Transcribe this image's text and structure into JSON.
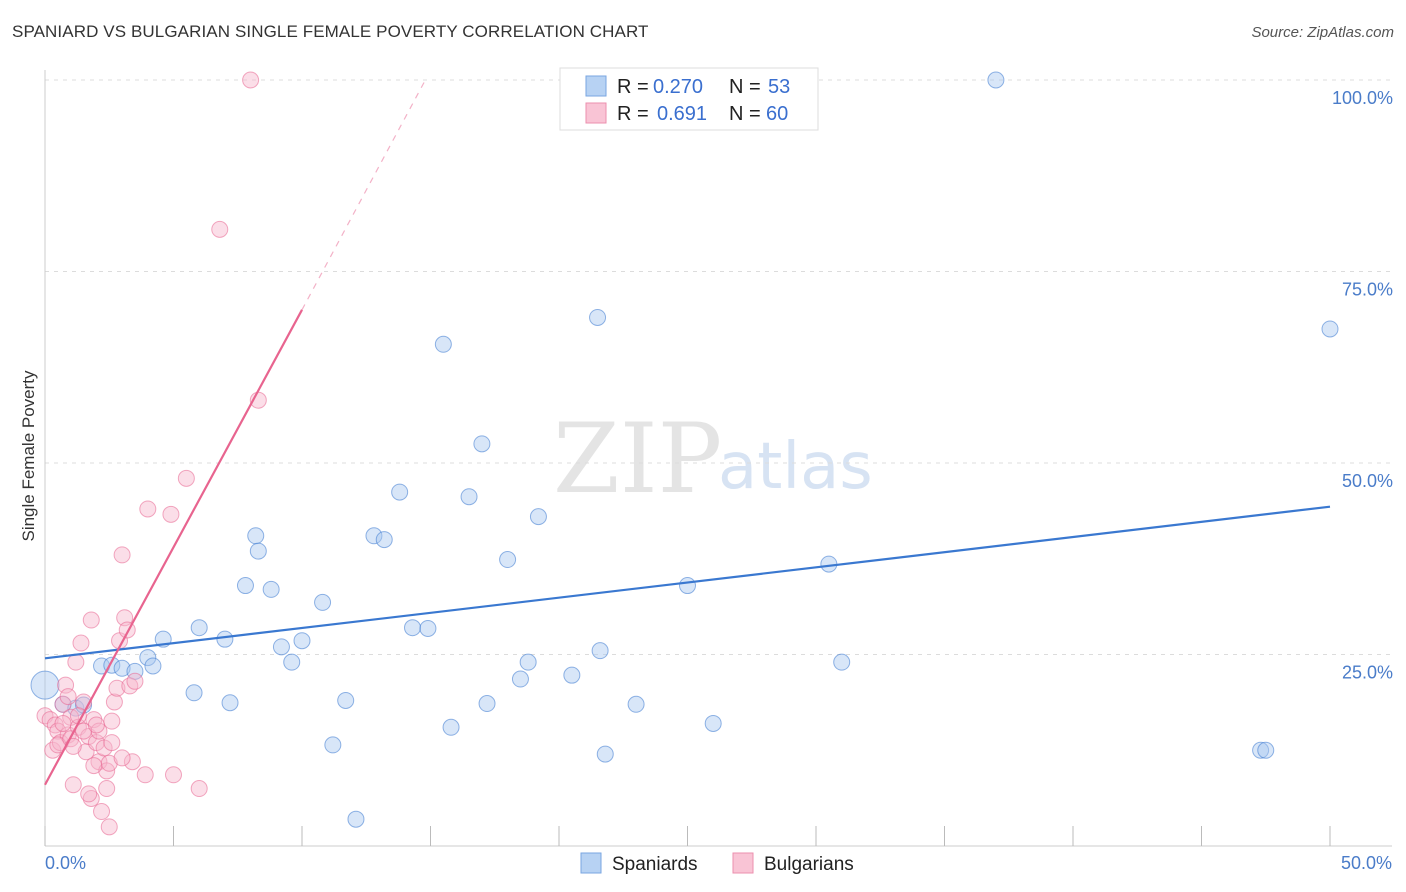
{
  "header": {
    "title": "SPANIARD VS BULGARIAN SINGLE FEMALE POVERTY CORRELATION CHART",
    "source": "Source: ZipAtlas.com"
  },
  "watermark": {
    "zip": "ZIP",
    "atlas": "atlas"
  },
  "legend": {
    "r_label": "R =",
    "n_label": "N =",
    "rows": [
      {
        "name": "Spaniards",
        "r": "0.270",
        "n": "53",
        "color": "#a9c8f0"
      },
      {
        "name": "Bulgarians",
        "r": "0.691",
        "n": "60",
        "color": "#f7b6cb"
      }
    ]
  },
  "chart_data": {
    "type": "scatter",
    "title": "SPANIARD VS BULGARIAN SINGLE FEMALE POVERTY CORRELATION CHART",
    "xlabel": "",
    "ylabel": "Single Female Poverty",
    "xlim": [
      0,
      50
    ],
    "ylim": [
      0,
      100
    ],
    "x_tick_labels": [
      "0.0%",
      "50.0%"
    ],
    "y_tick_labels": [
      "100.0%",
      "75.0%",
      "50.0%",
      "25.0%"
    ],
    "y_tick_values": [
      100,
      75,
      50,
      25
    ],
    "series": [
      {
        "name": "Spaniards",
        "color": "#3a78d0",
        "fill": "#a9c8f0",
        "trend": {
          "x0": 0,
          "y0": 24.5,
          "x1": 50,
          "y1": 44.3
        },
        "points": [
          [
            0.0,
            21.0
          ],
          [
            0.7,
            18.5
          ],
          [
            1.2,
            18.0
          ],
          [
            1.5,
            18.4
          ],
          [
            2.2,
            23.5
          ],
          [
            2.6,
            23.6
          ],
          [
            3.0,
            23.2
          ],
          [
            3.5,
            22.8
          ],
          [
            4.0,
            24.6
          ],
          [
            4.6,
            27.0
          ],
          [
            6.0,
            28.5
          ],
          [
            7.0,
            27.0
          ],
          [
            7.2,
            18.7
          ],
          [
            5.8,
            20.0
          ],
          [
            7.8,
            34.0
          ],
          [
            8.2,
            40.5
          ],
          [
            8.3,
            38.5
          ],
          [
            8.8,
            33.5
          ],
          [
            9.2,
            26.0
          ],
          [
            9.6,
            24.0
          ],
          [
            10.0,
            26.8
          ],
          [
            10.8,
            31.8
          ],
          [
            11.2,
            13.2
          ],
          [
            11.7,
            19.0
          ],
          [
            12.1,
            3.5
          ],
          [
            12.8,
            40.5
          ],
          [
            13.2,
            40.0
          ],
          [
            13.8,
            46.2
          ],
          [
            14.3,
            28.5
          ],
          [
            14.9,
            28.4
          ],
          [
            15.5,
            65.5
          ],
          [
            15.8,
            15.5
          ],
          [
            16.5,
            45.6
          ],
          [
            17.0,
            52.5
          ],
          [
            17.2,
            18.6
          ],
          [
            18.0,
            37.4
          ],
          [
            18.5,
            21.8
          ],
          [
            18.8,
            24.0
          ],
          [
            19.2,
            43.0
          ],
          [
            20.5,
            22.3
          ],
          [
            21.5,
            69.0
          ],
          [
            21.6,
            25.5
          ],
          [
            21.8,
            12.0
          ],
          [
            23.0,
            18.5
          ],
          [
            25.0,
            34.0
          ],
          [
            26.0,
            16.0
          ],
          [
            30.5,
            36.8
          ],
          [
            31.0,
            24.0
          ],
          [
            37.0,
            100.0
          ],
          [
            47.3,
            12.5
          ],
          [
            47.5,
            12.5
          ],
          [
            50.0,
            67.5
          ],
          [
            4.2,
            23.5
          ]
        ]
      },
      {
        "name": "Bulgarians",
        "color": "#e8648f",
        "fill": "#f7b6cb",
        "trend": {
          "x0": 0,
          "y0": 8.0,
          "x1": 10,
          "y1": 70.0,
          "dash_x1": 14.8,
          "dash_y1": 100.0
        },
        "points": [
          [
            0.0,
            17.0
          ],
          [
            0.2,
            16.5
          ],
          [
            0.3,
            12.5
          ],
          [
            0.4,
            15.8
          ],
          [
            0.5,
            15.0
          ],
          [
            0.6,
            13.5
          ],
          [
            0.7,
            18.5
          ],
          [
            0.8,
            21.0
          ],
          [
            0.9,
            14.5
          ],
          [
            1.0,
            16.8
          ],
          [
            1.1,
            8.0
          ],
          [
            1.2,
            24.0
          ],
          [
            1.3,
            15.5
          ],
          [
            1.4,
            26.5
          ],
          [
            1.5,
            18.8
          ],
          [
            1.6,
            12.3
          ],
          [
            1.7,
            14.3
          ],
          [
            1.8,
            6.2
          ],
          [
            1.7,
            6.8
          ],
          [
            1.8,
            29.5
          ],
          [
            1.9,
            16.5
          ],
          [
            2.0,
            13.5
          ],
          [
            2.1,
            11.0
          ],
          [
            2.2,
            4.5
          ],
          [
            2.1,
            15.0
          ],
          [
            2.3,
            12.8
          ],
          [
            2.4,
            9.8
          ],
          [
            2.5,
            2.5
          ],
          [
            2.4,
            7.5
          ],
          [
            2.5,
            10.8
          ],
          [
            2.6,
            13.5
          ],
          [
            2.7,
            18.8
          ],
          [
            2.8,
            20.6
          ],
          [
            2.9,
            26.8
          ],
          [
            3.0,
            38.0
          ],
          [
            3.1,
            29.8
          ],
          [
            3.2,
            28.2
          ],
          [
            3.3,
            20.9
          ],
          [
            3.4,
            11.0
          ],
          [
            3.5,
            21.5
          ],
          [
            3.9,
            9.3
          ],
          [
            4.0,
            44.0
          ],
          [
            4.9,
            43.3
          ],
          [
            5.0,
            9.3
          ],
          [
            5.5,
            48.0
          ],
          [
            6.0,
            7.5
          ],
          [
            6.8,
            80.5
          ],
          [
            8.0,
            100.0
          ],
          [
            8.3,
            58.2
          ],
          [
            0.5,
            13.2
          ],
          [
            1.0,
            14.0
          ],
          [
            1.5,
            15.0
          ],
          [
            0.9,
            19.5
          ],
          [
            1.3,
            17.0
          ],
          [
            2.0,
            15.8
          ],
          [
            0.7,
            16.0
          ],
          [
            1.1,
            13.0
          ],
          [
            2.6,
            16.3
          ],
          [
            1.9,
            10.5
          ],
          [
            3.0,
            11.5
          ]
        ]
      }
    ]
  }
}
